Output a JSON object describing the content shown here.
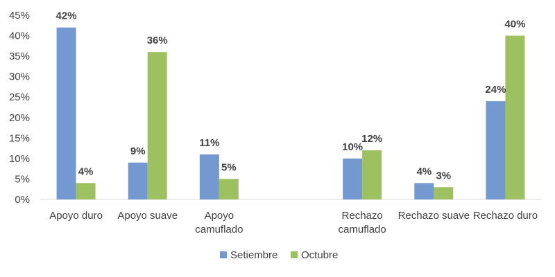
{
  "chart_data": {
    "type": "bar",
    "categories": [
      [
        "Apoyo duro"
      ],
      [
        "Apoyo suave"
      ],
      [
        "Apoyo",
        "camuflado"
      ],
      [
        ""
      ],
      [
        "Rechazo",
        "camuflado"
      ],
      [
        "Rechazo suave"
      ],
      [
        "Rechazo duro"
      ]
    ],
    "series": [
      {
        "name": "Setiembre",
        "values": [
          42,
          9,
          11,
          null,
          10,
          4,
          24
        ],
        "labels": [
          "42%",
          "9%",
          "11%",
          "",
          "10%",
          "4%",
          "24%"
        ],
        "color": "#7399D0"
      },
      {
        "name": "Octubre",
        "values": [
          4,
          36,
          5,
          null,
          12,
          3,
          40
        ],
        "labels": [
          "4%",
          "36%",
          "5%",
          "",
          "12%",
          "3%",
          "40%"
        ],
        "color": "#9DC060"
      }
    ],
    "yticks": [
      "0%",
      "5%",
      "10%",
      "15%",
      "20%",
      "25%",
      "30%",
      "35%",
      "40%",
      "45%"
    ],
    "ylim": [
      0,
      45
    ],
    "legend_position": "bottom",
    "grid": false
  }
}
